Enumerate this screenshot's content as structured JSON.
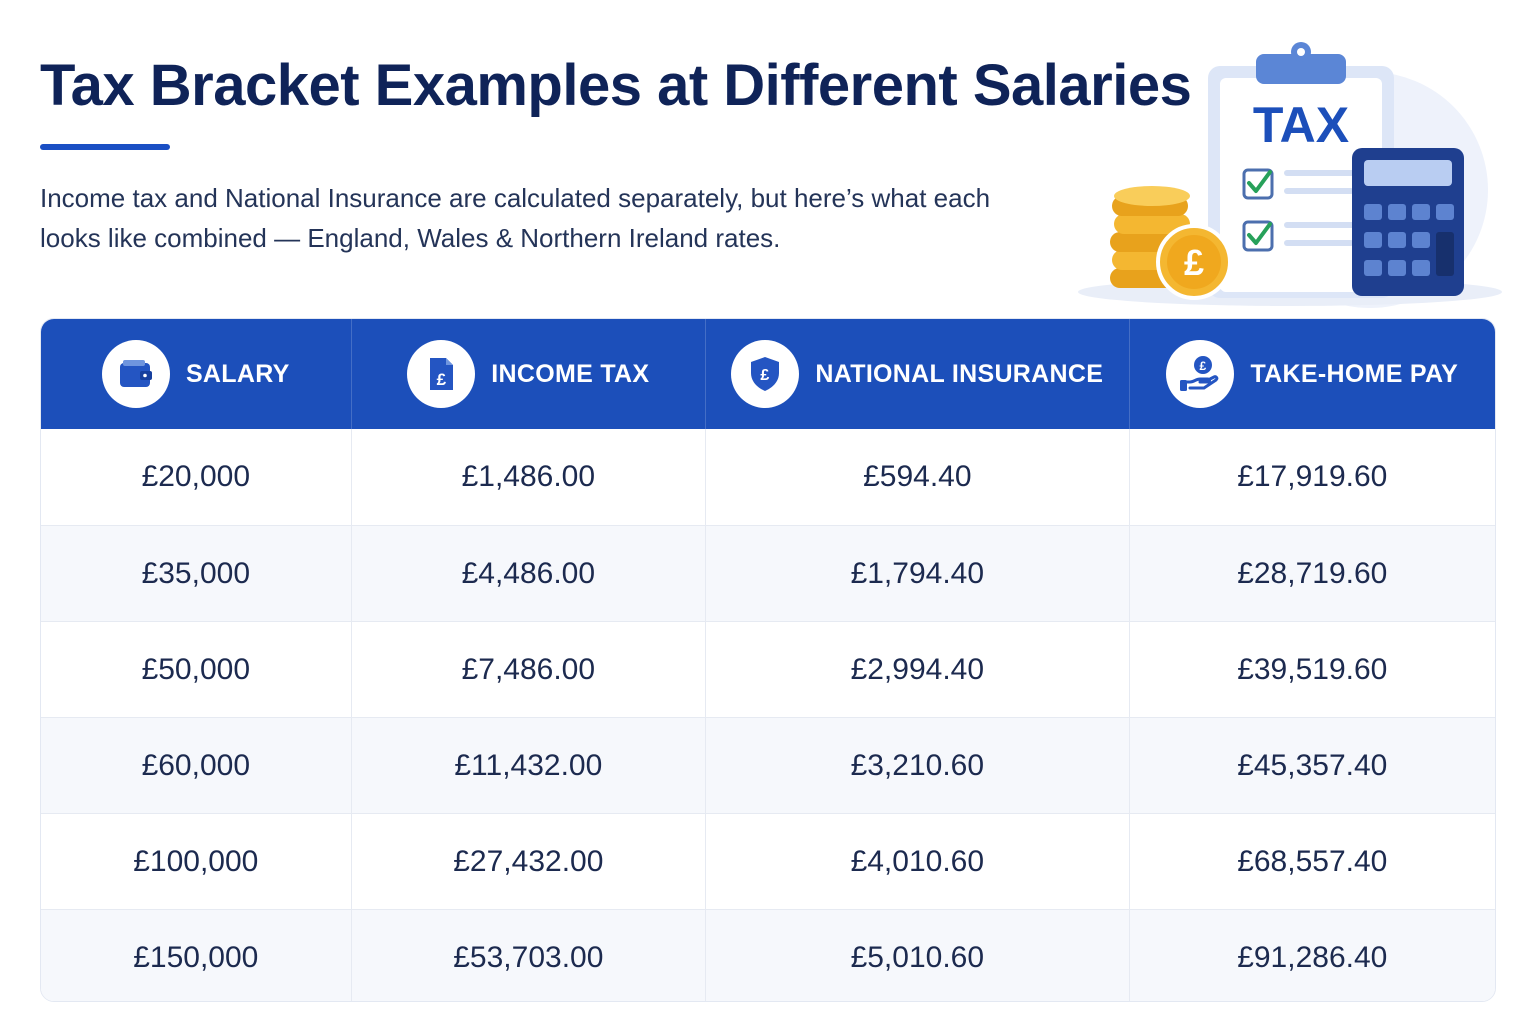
{
  "header": {
    "title": "Tax Bracket Examples at Different Salaries",
    "subtitle": "Income tax and National Insurance are calculated separately, but here’s what each looks like combined — England, Wales & Northern Ireland rates."
  },
  "illustration": {
    "clipboard_label": "TAX",
    "coin_symbol": "£",
    "icons": [
      "clipboard-icon",
      "calculator-icon",
      "coin-stack-icon",
      "checkbox-icon"
    ]
  },
  "table": {
    "columns": [
      {
        "label": "SALARY",
        "icon": "wallet-icon"
      },
      {
        "label": "INCOME TAX",
        "icon": "pound-document-icon"
      },
      {
        "label": "NATIONAL INSURANCE",
        "icon": "pound-shield-icon"
      },
      {
        "label": "TAKE-HOME PAY",
        "icon": "hand-coin-icon"
      }
    ],
    "rows": [
      [
        "£20,000",
        "£1,486.00",
        "£594.40",
        "£17,919.60"
      ],
      [
        "£35,000",
        "£4,486.00",
        "£1,794.40",
        "£28,719.60"
      ],
      [
        "£50,000",
        "£7,486.00",
        "£2,994.40",
        "£39,519.60"
      ],
      [
        "£60,000",
        "£11,432.00",
        "£3,210.60",
        "£45,357.40"
      ],
      [
        "£100,000",
        "£27,432.00",
        "£4,010.60",
        "£68,557.40"
      ],
      [
        "£150,000",
        "£53,703.00",
        "£5,010.60",
        "£91,286.40"
      ]
    ]
  },
  "colors": {
    "title": "#0f2358",
    "header_bg": "#1c4fba",
    "accent": "#1a4fc4",
    "coin": "#f4b731"
  }
}
